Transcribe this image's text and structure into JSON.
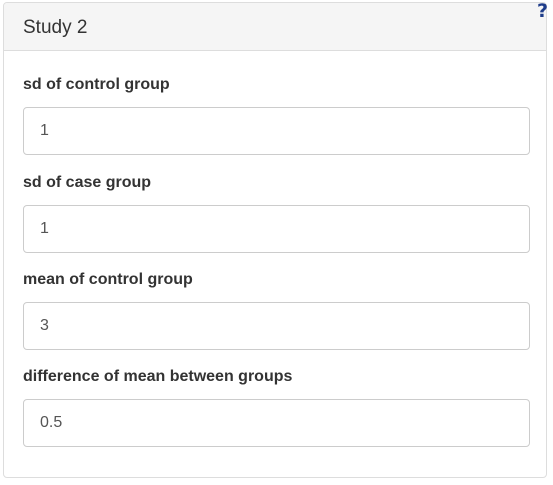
{
  "panel": {
    "title": "Study 2",
    "help_label": "?"
  },
  "fields": [
    {
      "label": "sd of control group",
      "value": "1"
    },
    {
      "label": "sd of case group",
      "value": "1"
    },
    {
      "label": "mean of control group",
      "value": "3"
    },
    {
      "label": "difference of mean between groups",
      "value": "0.5"
    }
  ],
  "colors": {
    "heading_bg": "#f5f5f5",
    "border": "#dddddd",
    "input_border": "#cccccc",
    "help_icon": "#1f3d8a"
  }
}
